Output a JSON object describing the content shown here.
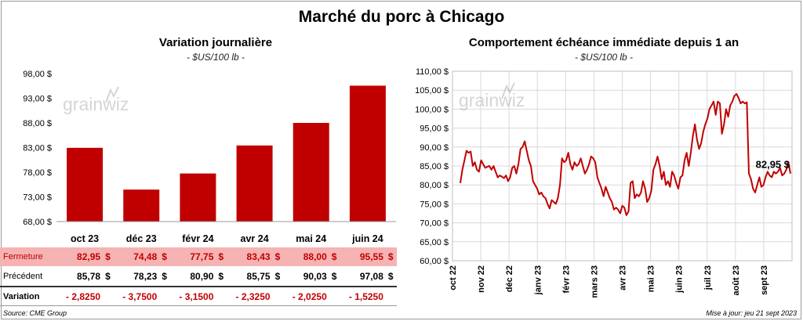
{
  "title": "Marché du porc à Chicago",
  "watermark": "grainwiz",
  "accent_color": "#c00000",
  "left_panel": {
    "title": "Variation journalière",
    "unit": "- $US/100 lb -"
  },
  "right_panel": {
    "title": "Comportement échéance immédiate depuis 1 an",
    "unit": "- $US/100 lb -"
  },
  "table": {
    "rows": [
      {
        "label": "Fermeture",
        "values": [
          "82,95",
          "74,48",
          "77,75",
          "83,43",
          "88,00",
          "95,55"
        ],
        "currency": "$"
      },
      {
        "label": "Précédent",
        "values": [
          "85,78",
          "78,23",
          "80,90",
          "85,75",
          "90,03",
          "97,08"
        ],
        "currency": "$"
      },
      {
        "label": "Variation",
        "values": [
          "- 2,8250",
          "- 3,7500",
          "- 3,1500",
          "- 2,3250",
          "- 2,0250",
          "- 1,5250"
        ],
        "currency": ""
      }
    ]
  },
  "footer": {
    "source": "Source: CME Group",
    "updated": "Mise à jour: jeu 21 sept 2023"
  },
  "chart_data": [
    {
      "type": "bar",
      "title": "Variation journalière",
      "ylabel": "$US/100 lb",
      "categories": [
        "oct 23",
        "déc 23",
        "févr 24",
        "avr 24",
        "mai 24",
        "juin 24"
      ],
      "values": [
        82.95,
        74.48,
        77.75,
        83.43,
        88.0,
        95.55
      ],
      "ylim": [
        68,
        98
      ],
      "yticks": [
        "68,00 $",
        "73,00 $",
        "78,00 $",
        "83,00 $",
        "88,00 $",
        "93,00 $",
        "98,00 $"
      ],
      "color": "#c00000",
      "grid": false
    },
    {
      "type": "line",
      "title": "Comportement échéance immédiate depuis 1 an",
      "ylabel": "$US/100 lb",
      "xticks": [
        "oct 22",
        "nov 22",
        "déc 22",
        "janv 23",
        "févr 23",
        "mars 23",
        "avr 23",
        "mai 23",
        "juin 23",
        "juil 23",
        "août 23",
        "sept 23"
      ],
      "yticks": [
        "60,00 $",
        "65,00 $",
        "70,00 $",
        "75,00 $",
        "80,00 $",
        "85,00 $",
        "90,00 $",
        "95,00 $",
        "100,00 $",
        "105,00 $",
        "110,00 $"
      ],
      "ylim": [
        60,
        110
      ],
      "color": "#c00000",
      "grid": true,
      "last_label": "82,95 $",
      "values": [
        80.5,
        84,
        86.5,
        89,
        88.5,
        88.8,
        85,
        86,
        84,
        83.5,
        86.5,
        85.5,
        84.5,
        84.8,
        85,
        84,
        85,
        83.5,
        82,
        82.5,
        82.2,
        81.8,
        82.5,
        81,
        82,
        84.5,
        85,
        83,
        85.5,
        89.5,
        90,
        91.5,
        89,
        86.5,
        85,
        81,
        80,
        79,
        77.5,
        78,
        77,
        76.5,
        75,
        73.8,
        76,
        75.5,
        75,
        76.5,
        80,
        87,
        86,
        86.5,
        88.5,
        85.5,
        84,
        86,
        85,
        85.5,
        87,
        85,
        83,
        84,
        85.5,
        87.5,
        87,
        86,
        82,
        80.5,
        79,
        77,
        79.5,
        78,
        76.5,
        75.5,
        73.5,
        74,
        73.5,
        72.5,
        74.5,
        74,
        72,
        73,
        80.5,
        81,
        76.5,
        77.5,
        77,
        78,
        81,
        79,
        75.5,
        76.5,
        78.5,
        84,
        85.5,
        87.5,
        85,
        81.5,
        83.5,
        80,
        81,
        79.5,
        83.5,
        82.5,
        80.5,
        79,
        82,
        82.5,
        86.5,
        88.5,
        85,
        88.5,
        93,
        96,
        92,
        89.5,
        91,
        94,
        96,
        97.5,
        100,
        101,
        102,
        98.5,
        102,
        101.5,
        93.5,
        96,
        100,
        98,
        101,
        102,
        103.5,
        104,
        103,
        101.5,
        102,
        101.5,
        101.8,
        83,
        81.5,
        79,
        78,
        80,
        82,
        79.5,
        80,
        82,
        83.5,
        82.5,
        82,
        83.5,
        83,
        83.5,
        84.5,
        82.5,
        83,
        84,
        86,
        83
      ]
    }
  ]
}
